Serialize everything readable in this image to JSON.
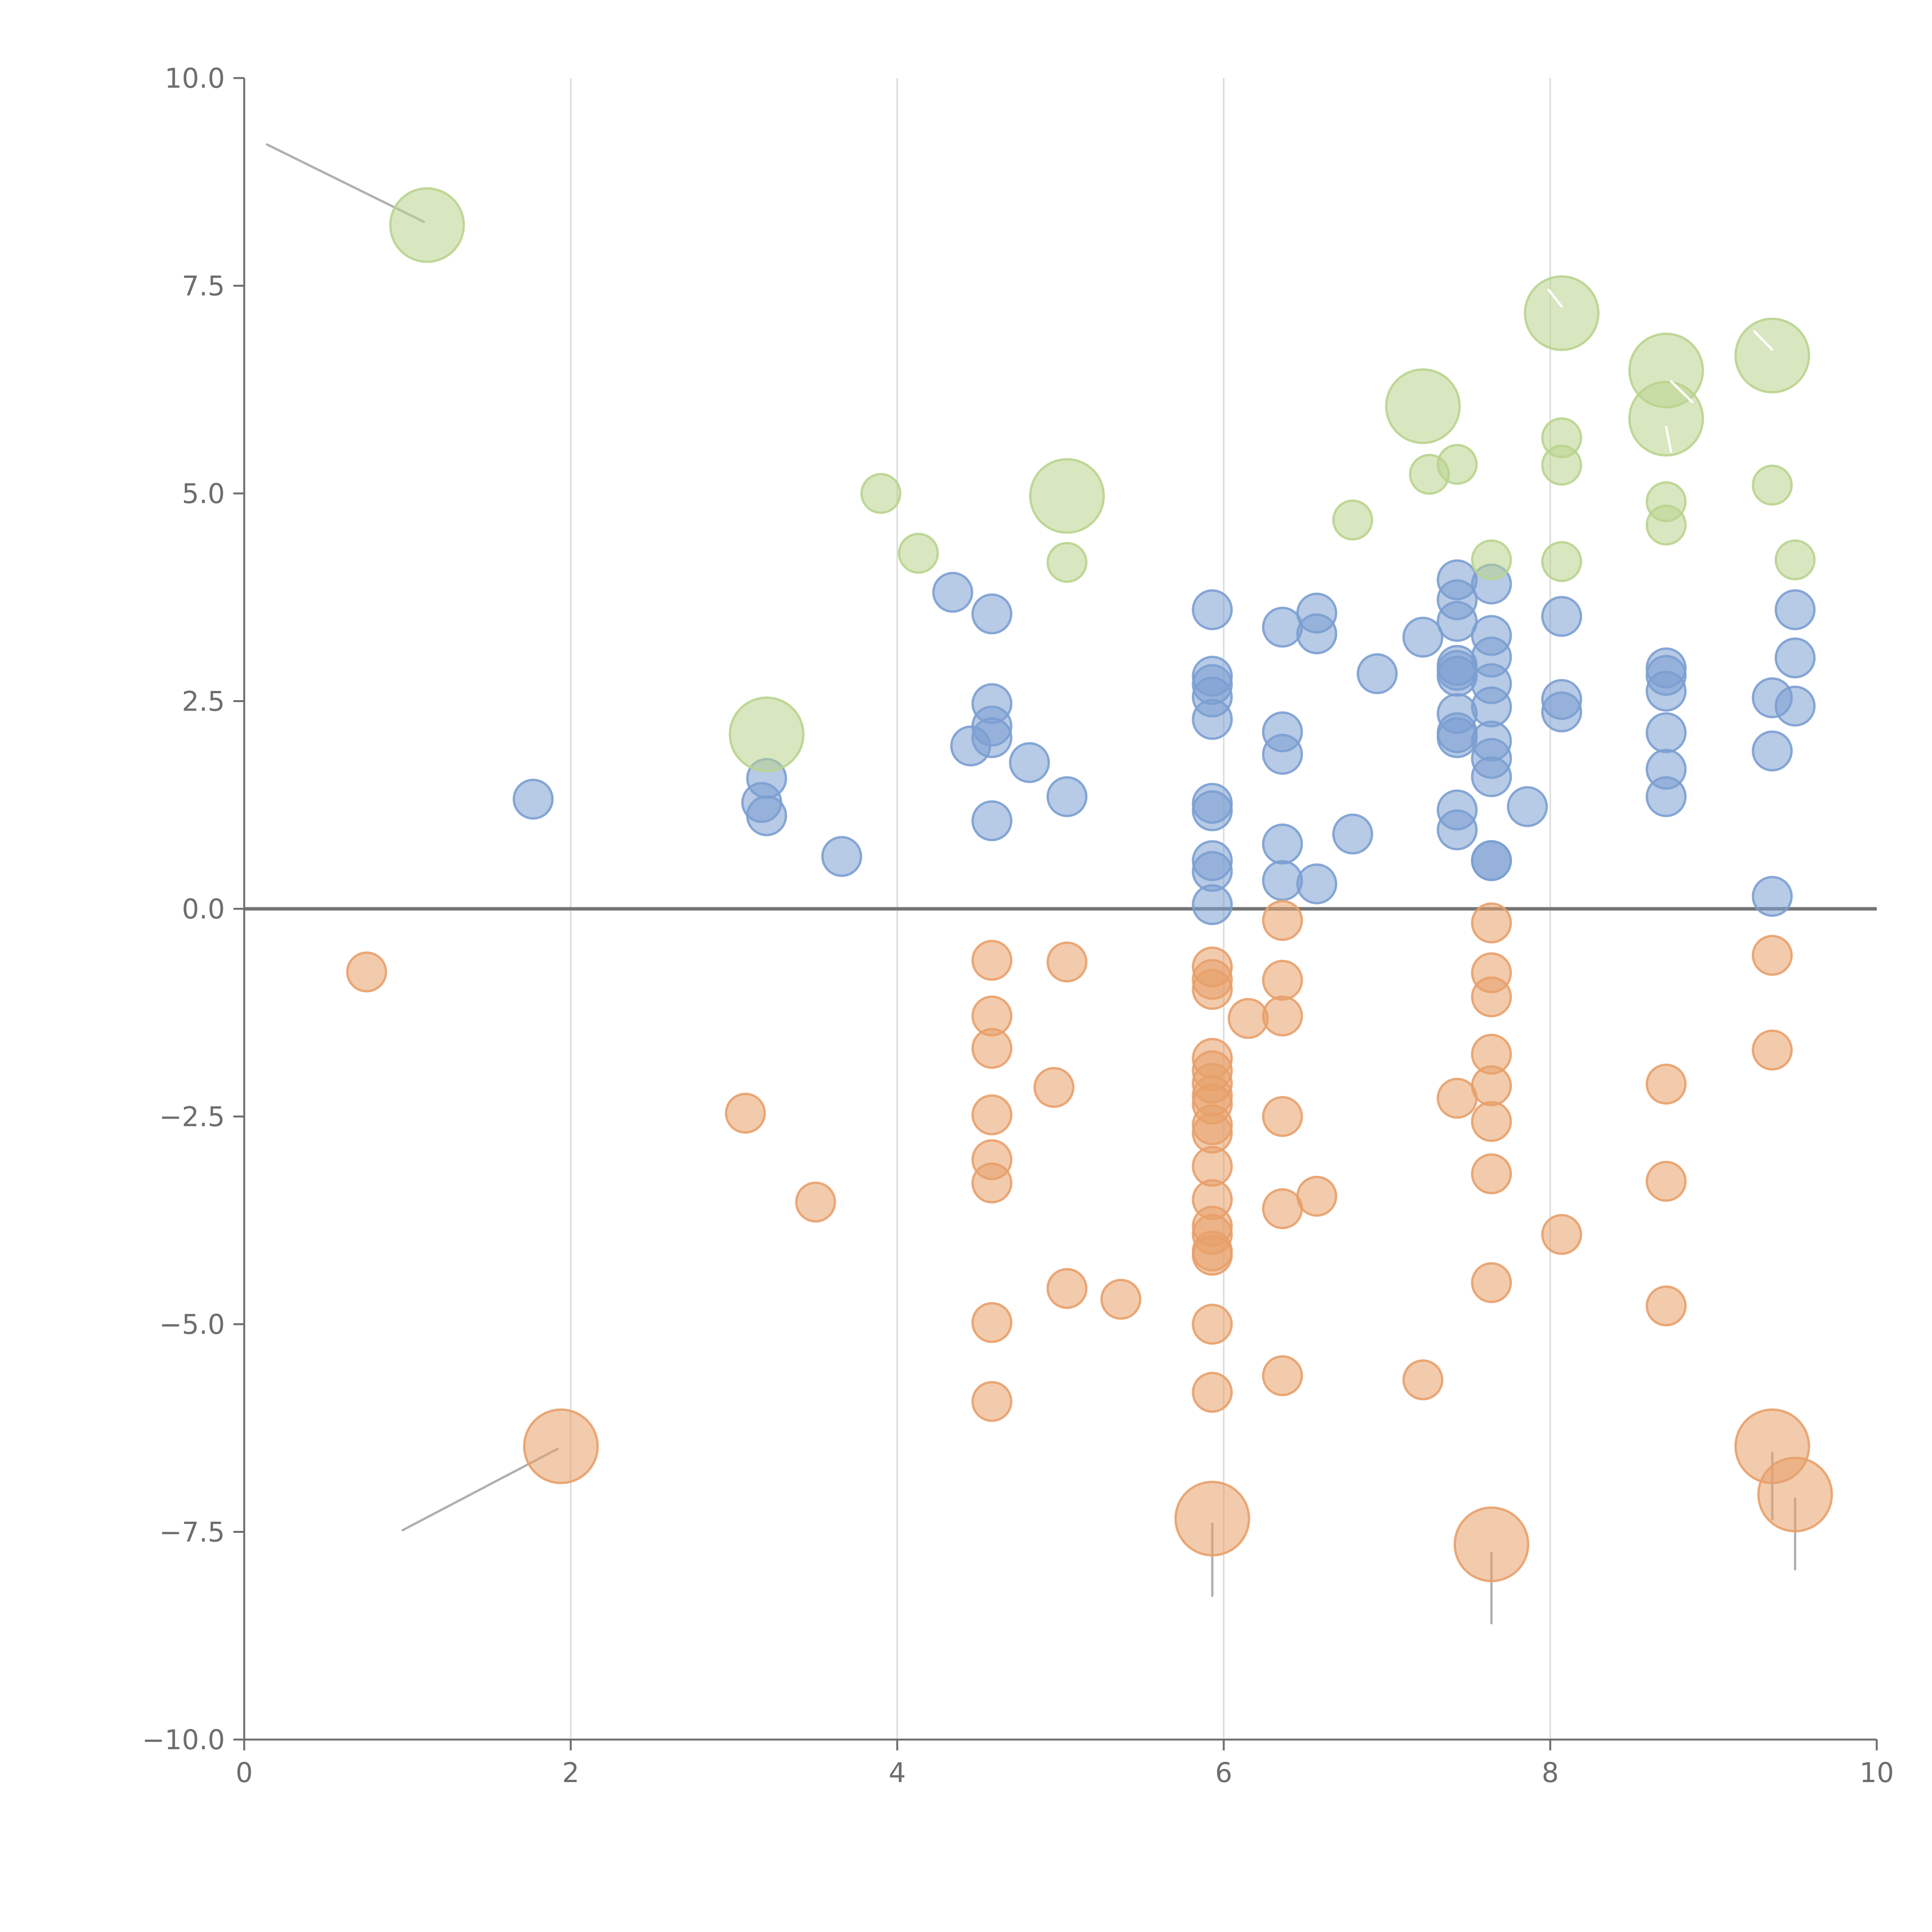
{
  "chart_data": {
    "type": "scatter",
    "title": "",
    "xlabel": "",
    "ylabel": "",
    "xlim": [
      0,
      10
    ],
    "ylim": [
      -10,
      10
    ],
    "xticks": [
      0,
      2,
      4,
      6,
      8,
      10
    ],
    "xtick_labels": [
      "0",
      "2",
      "4",
      "6",
      "8",
      "10"
    ],
    "yticks": [
      10,
      7.5,
      5,
      2.5,
      0,
      -2.5,
      -5,
      -7.5,
      -10
    ],
    "ytick_labels": [
      "10.0",
      "7.5",
      "5.0",
      "2.5",
      "0.0",
      "−2.5",
      "−5.0",
      "−7.5",
      "−10.0"
    ],
    "grid": "vertical",
    "colors": {
      "blue": "#7b9fd2",
      "orange": "#e8a06a",
      "green": "#b9d48e",
      "axis": "#6e6e6e",
      "grid": "#dcdcdc",
      "zero_line": "#757575",
      "leader": "#b0b0b0"
    },
    "series": [
      {
        "name": "blue",
        "color": "#7b9fd2",
        "points": [
          [
            1.77,
            1.32
          ],
          [
            3.17,
            1.28
          ],
          [
            3.2,
            1.57
          ],
          [
            3.2,
            1.12
          ],
          [
            3.66,
            0.63
          ],
          [
            4.34,
            3.81
          ],
          [
            4.58,
            3.55
          ],
          [
            4.45,
            1.96
          ],
          [
            4.58,
            2.47
          ],
          [
            4.58,
            2.2
          ],
          [
            4.58,
            2.06
          ],
          [
            4.81,
            1.76
          ],
          [
            4.58,
            1.06
          ],
          [
            5.04,
            1.35
          ],
          [
            5.93,
            3.6
          ],
          [
            5.93,
            2.8
          ],
          [
            5.93,
            2.7
          ],
          [
            5.93,
            2.55
          ],
          [
            5.93,
            2.28
          ],
          [
            5.93,
            1.27
          ],
          [
            5.93,
            1.18
          ],
          [
            5.93,
            0.58
          ],
          [
            5.93,
            0.45
          ],
          [
            5.93,
            0.05
          ],
          [
            6.36,
            3.39
          ],
          [
            6.57,
            3.56
          ],
          [
            6.57,
            3.31
          ],
          [
            6.36,
            2.13
          ],
          [
            6.36,
            1.86
          ],
          [
            6.36,
            0.78
          ],
          [
            6.36,
            0.34
          ],
          [
            6.57,
            0.3
          ],
          [
            6.79,
            0.9
          ],
          [
            6.94,
            2.83
          ],
          [
            7.22,
            3.27
          ],
          [
            7.43,
            3.96
          ],
          [
            7.43,
            3.72
          ],
          [
            7.43,
            3.46
          ],
          [
            7.43,
            2.93
          ],
          [
            7.43,
            2.87
          ],
          [
            7.43,
            2.8
          ],
          [
            7.43,
            2.35
          ],
          [
            7.43,
            2.12
          ],
          [
            7.43,
            2.06
          ],
          [
            7.43,
            1.19
          ],
          [
            7.43,
            0.95
          ],
          [
            7.64,
            3.91
          ],
          [
            7.64,
            3.29
          ],
          [
            7.64,
            3.03
          ],
          [
            7.64,
            2.71
          ],
          [
            7.64,
            2.43
          ],
          [
            7.64,
            2.02
          ],
          [
            7.64,
            1.81
          ],
          [
            7.64,
            1.59
          ],
          [
            7.64,
            0.58
          ],
          [
            7.64,
            0.58
          ],
          [
            7.86,
            1.23
          ],
          [
            8.07,
            3.52
          ],
          [
            8.07,
            2.52
          ],
          [
            8.07,
            2.37
          ],
          [
            8.71,
            2.9
          ],
          [
            8.71,
            2.81
          ],
          [
            8.71,
            2.62
          ],
          [
            8.71,
            2.12
          ],
          [
            8.71,
            1.68
          ],
          [
            8.71,
            1.35
          ],
          [
            9.36,
            2.54
          ],
          [
            9.36,
            1.9
          ],
          [
            9.36,
            0.15
          ],
          [
            9.5,
            3.6
          ],
          [
            9.5,
            3.02
          ],
          [
            9.5,
            2.44
          ]
        ]
      },
      {
        "name": "orange",
        "color": "#e8a06a",
        "points": [
          [
            0.75,
            -0.76
          ],
          [
            3.07,
            -2.46
          ],
          [
            3.5,
            -3.53
          ],
          [
            4.58,
            -0.62
          ],
          [
            4.58,
            -1.29
          ],
          [
            4.58,
            -1.68
          ],
          [
            4.58,
            -2.48
          ],
          [
            4.58,
            -3.02
          ],
          [
            4.58,
            -3.3
          ],
          [
            4.58,
            -4.98
          ],
          [
            4.58,
            -5.93
          ],
          [
            4.96,
            -2.15
          ],
          [
            5.04,
            -0.64
          ],
          [
            5.04,
            -4.57
          ],
          [
            5.37,
            -4.7
          ],
          [
            5.93,
            -0.7
          ],
          [
            5.93,
            -0.85
          ],
          [
            5.93,
            -0.97
          ],
          [
            5.93,
            -1.8
          ],
          [
            5.93,
            -1.95
          ],
          [
            5.93,
            -2.1
          ],
          [
            5.93,
            -2.25
          ],
          [
            5.93,
            -2.35
          ],
          [
            5.93,
            -2.6
          ],
          [
            5.93,
            -2.7
          ],
          [
            5.93,
            -3.1
          ],
          [
            5.93,
            -3.5
          ],
          [
            5.93,
            -3.82
          ],
          [
            5.93,
            -3.92
          ],
          [
            5.93,
            -4.12
          ],
          [
            5.93,
            -4.17
          ],
          [
            5.93,
            -5.0
          ],
          [
            5.93,
            -5.82
          ],
          [
            6.15,
            -1.32
          ],
          [
            6.36,
            -0.14
          ],
          [
            6.36,
            -0.86
          ],
          [
            6.36,
            -1.29
          ],
          [
            6.36,
            -2.5
          ],
          [
            6.36,
            -3.61
          ],
          [
            6.36,
            -5.62
          ],
          [
            6.57,
            -3.46
          ],
          [
            7.22,
            -5.67
          ],
          [
            7.43,
            -2.28
          ],
          [
            7.64,
            -0.17
          ],
          [
            7.64,
            -0.77
          ],
          [
            7.64,
            -1.06
          ],
          [
            7.64,
            -1.75
          ],
          [
            7.64,
            -2.13
          ],
          [
            7.64,
            -2.56
          ],
          [
            7.64,
            -3.19
          ],
          [
            7.64,
            -4.5
          ],
          [
            8.07,
            -3.92
          ],
          [
            8.71,
            -2.11
          ],
          [
            8.71,
            -3.28
          ],
          [
            8.71,
            -4.78
          ],
          [
            9.36,
            -0.56
          ],
          [
            9.36,
            -1.7
          ]
        ]
      },
      {
        "name": "green",
        "color": "#b9d48e",
        "points": [
          [
            3.9,
            5.0
          ],
          [
            4.13,
            4.28
          ],
          [
            5.04,
            4.17
          ],
          [
            6.79,
            4.68
          ],
          [
            7.26,
            5.23
          ],
          [
            7.43,
            5.35
          ],
          [
            7.64,
            4.2
          ],
          [
            8.07,
            5.67
          ],
          [
            8.07,
            5.34
          ],
          [
            8.07,
            4.18
          ],
          [
            8.71,
            4.9
          ],
          [
            8.71,
            4.62
          ],
          [
            9.36,
            5.1
          ],
          [
            9.5,
            4.2
          ]
        ]
      }
    ],
    "large_points": [
      {
        "series": "green",
        "x": 1.12,
        "y": 8.23
      },
      {
        "series": "green",
        "x": 3.2,
        "y": 2.1
      },
      {
        "series": "green",
        "x": 5.04,
        "y": 4.97
      },
      {
        "series": "green",
        "x": 7.22,
        "y": 6.05
      },
      {
        "series": "green",
        "x": 8.07,
        "y": 7.17
      },
      {
        "series": "green",
        "x": 8.71,
        "y": 6.48
      },
      {
        "series": "green",
        "x": 8.71,
        "y": 5.9
      },
      {
        "series": "green",
        "x": 9.36,
        "y": 6.66
      },
      {
        "series": "orange",
        "x": 1.94,
        "y": -6.47
      },
      {
        "series": "orange",
        "x": 5.93,
        "y": -7.34
      },
      {
        "series": "orange",
        "x": 7.64,
        "y": -7.65
      },
      {
        "series": "orange",
        "x": 9.36,
        "y": -6.47
      },
      {
        "series": "orange",
        "x": 9.5,
        "y": -7.05
      }
    ],
    "leader_lines": [
      {
        "from": [
          0.14,
          9.2
        ],
        "to": [
          1.1,
          8.27
        ],
        "color": "#b0b0b0"
      },
      {
        "from": [
          0.97,
          -7.48
        ],
        "to": [
          1.92,
          -6.5
        ],
        "color": "#b0b0b0"
      },
      {
        "from": [
          5.93,
          -7.4
        ],
        "to": [
          5.93,
          -8.27
        ],
        "color": "#b0b0b0"
      },
      {
        "from": [
          7.64,
          -7.75
        ],
        "to": [
          7.64,
          -8.6
        ],
        "color": "#b0b0b0"
      },
      {
        "from": [
          9.36,
          -6.55
        ],
        "to": [
          9.36,
          -7.35
        ],
        "color": "#b0b0b0"
      },
      {
        "from": [
          9.5,
          -7.1
        ],
        "to": [
          9.5,
          -7.95
        ],
        "color": "#b0b0b0"
      },
      {
        "from": [
          7.99,
          7.45
        ],
        "to": [
          8.07,
          7.25
        ],
        "color": "#ffffff"
      },
      {
        "from": [
          8.74,
          6.35
        ],
        "to": [
          8.87,
          6.1
        ],
        "color": "#ffffff"
      },
      {
        "from": [
          8.71,
          5.8
        ],
        "to": [
          8.74,
          5.5
        ],
        "color": "#ffffff"
      },
      {
        "from": [
          9.25,
          6.95
        ],
        "to": [
          9.36,
          6.73
        ],
        "color": "#ffffff"
      }
    ]
  }
}
